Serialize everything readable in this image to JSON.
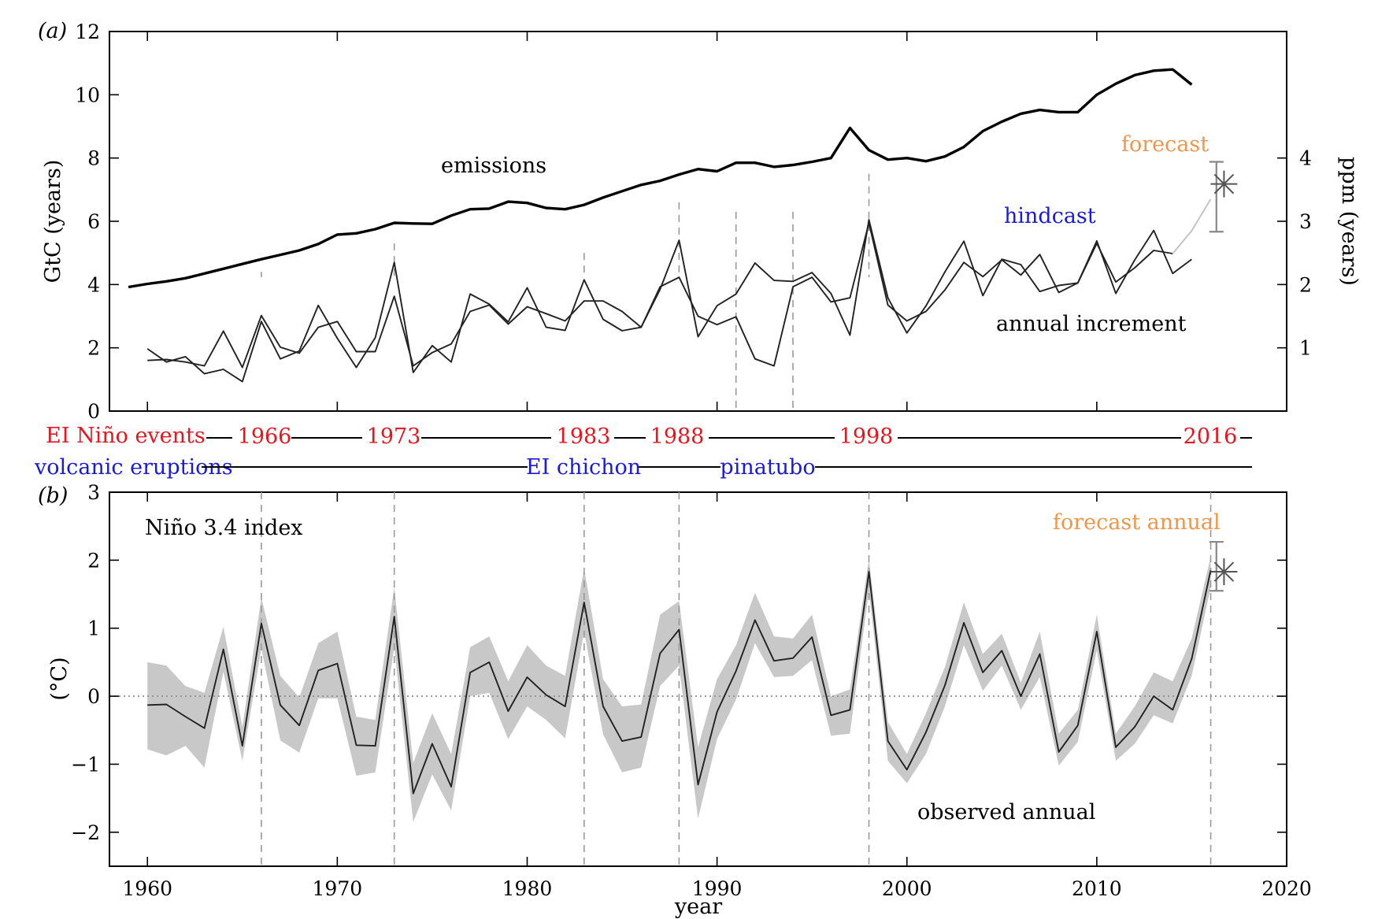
{
  "chart_data": [
    {
      "panel": "(a)",
      "type": "line",
      "xlim": [
        1958,
        2020
      ],
      "ylim": [
        0,
        12
      ],
      "ylabel": "GtC (years)",
      "y2label": "ppm (years)",
      "y2lim": [
        0,
        6
      ],
      "yticks": [
        "0",
        "2",
        "4",
        "6",
        "8",
        "10",
        "12"
      ],
      "y2ticks": [
        "1",
        "2",
        "3",
        "4"
      ],
      "event_lines": [
        1966,
        1973,
        1983,
        1988,
        1998,
        2016
      ],
      "volcano_lines": [
        1991,
        1994
      ],
      "series": [
        {
          "name": "emissions",
          "x": [
            1959,
            1960,
            1961,
            1962,
            1963,
            1964,
            1965,
            1966,
            1967,
            1968,
            1969,
            1970,
            1971,
            1972,
            1973,
            1974,
            1975,
            1976,
            1977,
            1978,
            1979,
            1980,
            1981,
            1982,
            1983,
            1984,
            1985,
            1986,
            1987,
            1988,
            1989,
            1990,
            1991,
            1992,
            1993,
            1994,
            1995,
            1996,
            1997,
            1998,
            1999,
            2000,
            2001,
            2002,
            2003,
            2004,
            2005,
            2006,
            2007,
            2008,
            2009,
            2010,
            2011,
            2012,
            2013,
            2014,
            2015
          ],
          "values": [
            3.92,
            4.02,
            4.1,
            4.2,
            4.35,
            4.5,
            4.65,
            4.8,
            4.94,
            5.08,
            5.28,
            5.58,
            5.62,
            5.75,
            5.95,
            5.93,
            5.92,
            6.18,
            6.38,
            6.4,
            6.62,
            6.58,
            6.42,
            6.38,
            6.52,
            6.75,
            6.95,
            7.15,
            7.28,
            7.48,
            7.65,
            7.58,
            7.85,
            7.85,
            7.72,
            7.78,
            7.88,
            8.0,
            8.95,
            8.25,
            7.95,
            8.0,
            7.9,
            8.05,
            8.35,
            8.85,
            9.15,
            9.4,
            9.52,
            9.45,
            9.45,
            10.0,
            10.35,
            10.62,
            10.76,
            10.8,
            10.32
          ]
        },
        {
          "name": "annual increment",
          "x": [
            1960,
            1961,
            1962,
            1963,
            1964,
            1965,
            1966,
            1967,
            1968,
            1969,
            1970,
            1971,
            1972,
            1973,
            1974,
            1975,
            1976,
            1977,
            1978,
            1979,
            1980,
            1981,
            1982,
            1983,
            1984,
            1985,
            1986,
            1987,
            1988,
            1989,
            1990,
            1991,
            1992,
            1993,
            1994,
            1995,
            1996,
            1997,
            1998,
            1999,
            2000,
            2001,
            2002,
            2003,
            2004,
            2005,
            2006,
            2007,
            2008,
            2009,
            2010,
            2011,
            2012,
            2013,
            2014,
            2015
          ],
          "values": [
            1.97,
            1.55,
            1.72,
            1.18,
            1.32,
            0.93,
            2.83,
            1.65,
            1.9,
            3.34,
            2.3,
            1.38,
            2.32,
            4.7,
            1.22,
            2.07,
            1.55,
            3.7,
            3.38,
            2.82,
            3.9,
            2.65,
            2.55,
            4.15,
            2.9,
            2.54,
            2.65,
            3.85,
            5.4,
            2.35,
            3.33,
            3.7,
            4.68,
            4.13,
            4.1,
            4.38,
            3.72,
            2.4,
            6.05,
            3.58,
            2.47,
            3.32,
            4.4,
            5.37,
            3.65,
            4.8,
            4.63,
            3.78,
            3.97,
            4.05,
            5.38,
            3.72,
            4.78,
            5.71,
            4.35,
            4.8
          ]
        },
        {
          "name": "hindcast",
          "x": [
            1960,
            1961,
            1962,
            1963,
            1964,
            1965,
            1966,
            1967,
            1968,
            1969,
            1970,
            1971,
            1972,
            1973,
            1974,
            1975,
            1976,
            1977,
            1978,
            1979,
            1980,
            1981,
            1982,
            1983,
            1984,
            1985,
            1986,
            1987,
            1988,
            1989,
            1990,
            1991,
            1992,
            1993,
            1994,
            1995,
            1996,
            1997,
            1998,
            1999,
            2000,
            2001,
            2002,
            2003,
            2004,
            2005,
            2006,
            2007,
            2008,
            2009,
            2010,
            2011,
            2012,
            2013,
            2014
          ],
          "values": [
            1.6,
            1.63,
            1.55,
            1.43,
            2.53,
            1.38,
            3.02,
            2.02,
            1.83,
            2.65,
            2.83,
            1.88,
            1.88,
            3.63,
            1.43,
            1.85,
            2.12,
            3.15,
            3.35,
            2.75,
            3.3,
            3.08,
            2.85,
            3.48,
            3.48,
            3.15,
            2.65,
            3.93,
            4.23,
            3.0,
            2.73,
            2.98,
            1.65,
            1.43,
            3.93,
            4.23,
            3.45,
            3.58,
            5.95,
            3.35,
            2.85,
            3.15,
            3.83,
            4.7,
            4.25,
            4.78,
            4.3,
            4.95,
            3.75,
            4.05,
            5.3,
            4.08,
            4.53,
            5.08,
            4.98
          ]
        },
        {
          "name": "forecast",
          "x": [
            2014,
            2015,
            2016
          ],
          "values": [
            4.98,
            5.7,
            6.7
          ]
        }
      ],
      "forecast_point": {
        "x": 2016.7,
        "y": 7.18,
        "err_low": 5.67,
        "err_high": 7.88
      },
      "annotations": {
        "emissions": "emissions",
        "annual_increment": "annual increment",
        "hindcast": "hindcast",
        "forecast": "forecast"
      }
    },
    {
      "panel": "(b)",
      "type": "line",
      "xlim": [
        1958,
        2020
      ],
      "ylim": [
        -2.5,
        3
      ],
      "ylabel": "(°C)",
      "xlabel": "year",
      "xticks": [
        "1960",
        "1970",
        "1980",
        "1990",
        "2000",
        "2010",
        "2020"
      ],
      "yticks": [
        "−2",
        "−1",
        "0",
        "1",
        "2",
        "3"
      ],
      "event_lines": [
        1966,
        1973,
        1983,
        1988,
        1998,
        2016
      ],
      "series": [
        {
          "name": "observed annual",
          "x": [
            1960,
            1961,
            1962,
            1963,
            1964,
            1965,
            1966,
            1967,
            1968,
            1969,
            1970,
            1971,
            1972,
            1973,
            1974,
            1975,
            1976,
            1977,
            1978,
            1979,
            1980,
            1981,
            1982,
            1983,
            1984,
            1985,
            1986,
            1987,
            1988,
            1989,
            1990,
            1991,
            1992,
            1993,
            1994,
            1995,
            1996,
            1997,
            1998,
            1999,
            2000,
            2001,
            2002,
            2003,
            2004,
            2005,
            2006,
            2007,
            2008,
            2009,
            2010,
            2011,
            2012,
            2013,
            2014,
            2015,
            2016
          ],
          "values": [
            -0.13,
            -0.12,
            -0.3,
            -0.47,
            0.69,
            -0.73,
            1.07,
            -0.13,
            -0.43,
            0.38,
            0.48,
            -0.72,
            -0.73,
            1.17,
            -1.43,
            -0.7,
            -1.33,
            0.35,
            0.5,
            -0.22,
            0.28,
            0.02,
            -0.15,
            1.38,
            -0.15,
            -0.66,
            -0.6,
            0.63,
            0.98,
            -1.3,
            -0.23,
            0.37,
            1.12,
            0.52,
            0.56,
            0.87,
            -0.28,
            -0.2,
            1.83,
            -0.66,
            -1.08,
            -0.53,
            0.16,
            1.08,
            0.35,
            0.67,
            0.0,
            0.62,
            -0.82,
            -0.43,
            0.95,
            -0.75,
            -0.45,
            0.0,
            -0.2,
            0.55,
            1.85
          ],
          "band_low": [
            -0.78,
            -0.87,
            -0.73,
            -1.05,
            0.36,
            -0.95,
            0.7,
            -0.65,
            -0.83,
            -0.03,
            -0.03,
            -1.17,
            -1.12,
            0.72,
            -1.85,
            -1.15,
            -1.68,
            0.0,
            0.05,
            -0.63,
            -0.15,
            -0.35,
            -0.62,
            0.95,
            -0.56,
            -1.12,
            -1.05,
            0.15,
            0.45,
            -1.8,
            -0.63,
            -0.05,
            0.78,
            0.28,
            0.3,
            0.53,
            -0.58,
            -0.55,
            1.55,
            -0.95,
            -1.28,
            -0.85,
            -0.15,
            0.75,
            0.08,
            0.45,
            -0.2,
            0.28,
            -1.02,
            -0.67,
            0.68,
            -0.95,
            -0.7,
            -0.28,
            -0.4,
            0.3,
            1.6
          ],
          "band_high": [
            0.5,
            0.45,
            0.15,
            0.05,
            1.02,
            -0.45,
            1.45,
            0.3,
            -0.02,
            0.78,
            0.95,
            -0.3,
            -0.35,
            1.6,
            -0.98,
            -0.25,
            -0.85,
            0.72,
            0.88,
            0.22,
            0.75,
            0.45,
            0.3,
            1.88,
            0.25,
            -0.15,
            -0.12,
            1.2,
            1.4,
            -0.75,
            0.25,
            0.75,
            1.52,
            0.88,
            0.85,
            1.2,
            0.0,
            0.1,
            2.02,
            -0.38,
            -0.85,
            -0.25,
            0.43,
            1.38,
            0.62,
            0.92,
            0.2,
            0.95,
            -0.55,
            -0.2,
            1.2,
            -0.55,
            -0.15,
            0.35,
            0.22,
            0.85,
            2.05
          ]
        }
      ],
      "forecast_point": {
        "x": 2016.7,
        "y": 1.83,
        "err_low": 1.55,
        "err_high": 2.27
      },
      "annotations": {
        "index": "Niño 3.4 index",
        "observed": "observed annual",
        "forecast": "forecast annual"
      }
    }
  ],
  "event_rows": {
    "el_nino": {
      "label": "EI Niño events",
      "color": "#e8141e",
      "years": [
        "1966",
        "1973",
        "1983",
        "1988",
        "1998",
        "2016"
      ]
    },
    "volcanic": {
      "label": "volcanic eruptions",
      "color": "#1a1adc",
      "names": [
        "EI chichon",
        "pinatubo"
      ]
    }
  },
  "panel_labels": [
    "(a)",
    "(b)"
  ],
  "colors": {
    "forecast": "#f0964a",
    "hindcast": "#1a1adc",
    "band": "#c8c8c8",
    "axis": "#000000"
  }
}
